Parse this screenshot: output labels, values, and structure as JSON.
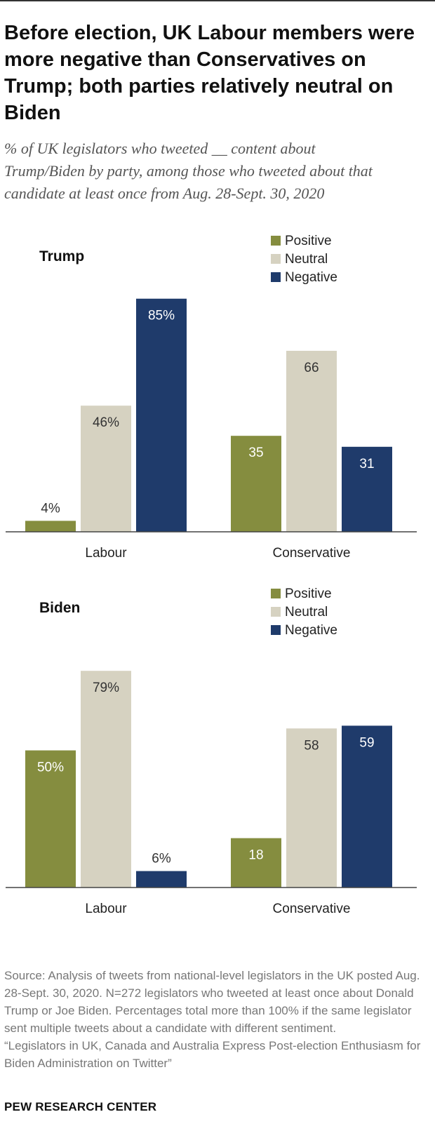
{
  "title": "Before election, UK Labour members were more negative than Conservatives on Trump; both parties relatively neutral on Biden",
  "subtitle": "% of UK legislators who tweeted __ content about Trump/Biden by party, among those who tweeted about that candidate at least once from Aug. 28-Sept. 30, 2020",
  "source": "Source: Analysis of tweets from national-level legislators in the UK posted Aug. 28-Sept. 30, 2020. N=272 legislators who tweeted at least once about Donald Trump or Joe Biden. Percentages total more than 100% if the same legislator sent multiple tweets about a candidate with different sentiment.",
  "report": "“Legislators in UK, Canada and Australia Express Post-election Enthusiasm for Biden Administration on Twitter”",
  "brand": "PEW RESEARCH CENTER",
  "colors": {
    "positive": "#858d3f",
    "neutral": "#d6d2c1",
    "negative": "#1f3b6b"
  },
  "chart_data": [
    {
      "type": "bar",
      "panel_label": "Trump",
      "categories": [
        "Labour",
        "Conservative"
      ],
      "series": [
        {
          "name": "Positive",
          "values": [
            4,
            35
          ],
          "labels": [
            "4%",
            "35"
          ]
        },
        {
          "name": "Neutral",
          "values": [
            46,
            66
          ],
          "labels": [
            "46%",
            "66"
          ]
        },
        {
          "name": "Negative",
          "values": [
            85,
            31
          ],
          "labels": [
            "85%",
            "31"
          ]
        }
      ],
      "ylim": [
        0,
        100
      ],
      "legend_position": "top-right",
      "grid": false
    },
    {
      "type": "bar",
      "panel_label": "Biden",
      "categories": [
        "Labour",
        "Conservative"
      ],
      "series": [
        {
          "name": "Positive",
          "values": [
            50,
            18
          ],
          "labels": [
            "50%",
            "18"
          ]
        },
        {
          "name": "Neutral",
          "values": [
            79,
            58
          ],
          "labels": [
            "79%",
            "58"
          ]
        },
        {
          "name": "Negative",
          "values": [
            6,
            59
          ],
          "labels": [
            "6%",
            "59"
          ]
        }
      ],
      "ylim": [
        0,
        100
      ],
      "legend_position": "top-right",
      "grid": false
    }
  ]
}
